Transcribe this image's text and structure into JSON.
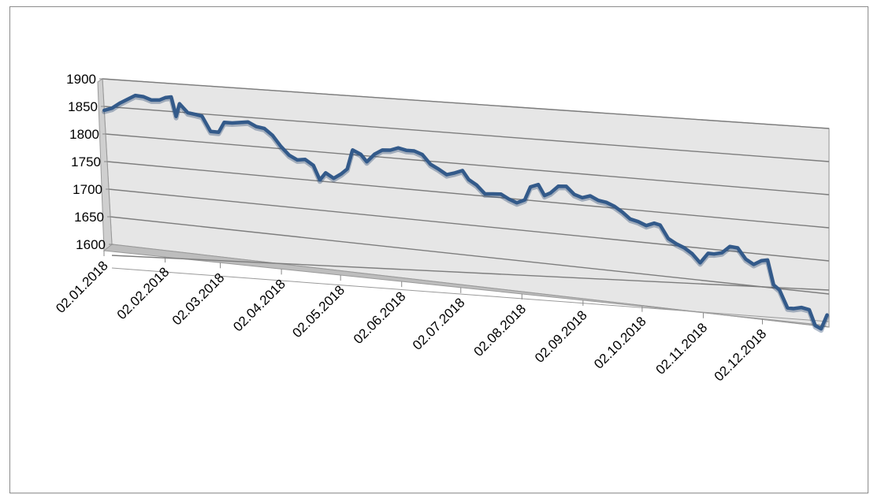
{
  "chart_data": {
    "type": "line",
    "title": "",
    "xlabel": "",
    "ylabel": "",
    "perspective": "3d",
    "grid": true,
    "legend": "none",
    "ylim": [
      1600,
      1900
    ],
    "y_ticks": [
      "1900",
      "1850",
      "1800",
      "1750",
      "1700",
      "1650",
      "1600"
    ],
    "x_ticks": [
      "02.01.2018",
      "02.02.2018",
      "02.03.2018",
      "02.04.2018",
      "02.05.2018",
      "02.06.2018",
      "02.07.2018",
      "02.08.2018",
      "02.09.2018",
      "02.10.2018",
      "02.11.2018",
      "02.12.2018"
    ],
    "series": [
      {
        "color": "#335a8a",
        "points": [
          [
            "2018-01-02",
            1843
          ],
          [
            "2018-01-06",
            1848
          ],
          [
            "2018-01-10",
            1858
          ],
          [
            "2018-01-14",
            1866
          ],
          [
            "2018-01-18",
            1874
          ],
          [
            "2018-01-22",
            1873
          ],
          [
            "2018-01-26",
            1868
          ],
          [
            "2018-01-30",
            1869
          ],
          [
            "2018-02-02",
            1874
          ],
          [
            "2018-02-05",
            1876
          ],
          [
            "2018-02-07",
            1842
          ],
          [
            "2018-02-09",
            1865
          ],
          [
            "2018-02-13",
            1850
          ],
          [
            "2018-02-17",
            1848
          ],
          [
            "2018-02-20",
            1846
          ],
          [
            "2018-02-24",
            1820
          ],
          [
            "2018-02-28",
            1820
          ],
          [
            "2018-03-03",
            1838
          ],
          [
            "2018-03-07",
            1838
          ],
          [
            "2018-03-11",
            1840
          ],
          [
            "2018-03-15",
            1842
          ],
          [
            "2018-03-19",
            1835
          ],
          [
            "2018-03-23",
            1833
          ],
          [
            "2018-03-27",
            1822
          ],
          [
            "2018-03-31",
            1804
          ],
          [
            "2018-04-04",
            1790
          ],
          [
            "2018-04-08",
            1783
          ],
          [
            "2018-04-12",
            1785
          ],
          [
            "2018-04-16",
            1776
          ],
          [
            "2018-04-19",
            1752
          ],
          [
            "2018-04-22",
            1765
          ],
          [
            "2018-04-26",
            1757
          ],
          [
            "2018-04-30",
            1766
          ],
          [
            "2018-05-03",
            1775
          ],
          [
            "2018-05-06",
            1808
          ],
          [
            "2018-05-10",
            1802
          ],
          [
            "2018-05-13",
            1790
          ],
          [
            "2018-05-17",
            1804
          ],
          [
            "2018-05-21",
            1812
          ],
          [
            "2018-05-25",
            1813
          ],
          [
            "2018-05-29",
            1818
          ],
          [
            "2018-06-02",
            1815
          ],
          [
            "2018-06-06",
            1815
          ],
          [
            "2018-06-10",
            1810
          ],
          [
            "2018-06-14",
            1795
          ],
          [
            "2018-06-18",
            1788
          ],
          [
            "2018-06-22",
            1780
          ],
          [
            "2018-06-26",
            1784
          ],
          [
            "2018-06-30",
            1789
          ],
          [
            "2018-07-03",
            1775
          ],
          [
            "2018-07-07",
            1767
          ],
          [
            "2018-07-11",
            1754
          ],
          [
            "2018-07-15",
            1755
          ],
          [
            "2018-07-19",
            1756
          ],
          [
            "2018-07-23",
            1749
          ],
          [
            "2018-07-27",
            1744
          ],
          [
            "2018-07-31",
            1750
          ],
          [
            "2018-08-03",
            1772
          ],
          [
            "2018-08-07",
            1777
          ],
          [
            "2018-08-10",
            1760
          ],
          [
            "2018-08-13",
            1765
          ],
          [
            "2018-08-17",
            1777
          ],
          [
            "2018-08-21",
            1778
          ],
          [
            "2018-08-25",
            1766
          ],
          [
            "2018-08-29",
            1762
          ],
          [
            "2018-09-02",
            1766
          ],
          [
            "2018-09-06",
            1760
          ],
          [
            "2018-09-10",
            1758
          ],
          [
            "2018-09-14",
            1753
          ],
          [
            "2018-09-18",
            1745
          ],
          [
            "2018-09-22",
            1735
          ],
          [
            "2018-09-26",
            1732
          ],
          [
            "2018-09-30",
            1727
          ],
          [
            "2018-10-04",
            1732
          ],
          [
            "2018-10-07",
            1730
          ],
          [
            "2018-10-11",
            1710
          ],
          [
            "2018-10-15",
            1703
          ],
          [
            "2018-10-19",
            1698
          ],
          [
            "2018-10-23",
            1690
          ],
          [
            "2018-10-27",
            1677
          ],
          [
            "2018-10-31",
            1693
          ],
          [
            "2018-11-03",
            1693
          ],
          [
            "2018-11-07",
            1696
          ],
          [
            "2018-11-11",
            1707
          ],
          [
            "2018-11-15",
            1706
          ],
          [
            "2018-11-19",
            1690
          ],
          [
            "2018-11-23",
            1683
          ],
          [
            "2018-11-27",
            1690
          ],
          [
            "2018-11-30",
            1692
          ],
          [
            "2018-12-03",
            1655
          ],
          [
            "2018-12-06",
            1648
          ],
          [
            "2018-12-10",
            1622
          ],
          [
            "2018-12-13",
            1622
          ],
          [
            "2018-12-17",
            1625
          ],
          [
            "2018-12-21",
            1623
          ],
          [
            "2018-12-24",
            1600
          ],
          [
            "2018-12-27",
            1596
          ],
          [
            "2018-12-30",
            1618
          ]
        ]
      }
    ]
  }
}
